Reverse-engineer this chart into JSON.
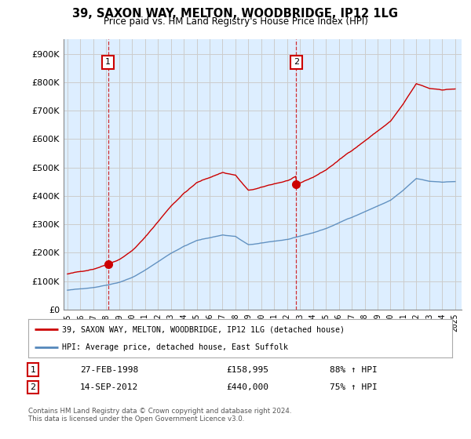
{
  "title": "39, SAXON WAY, MELTON, WOODBRIDGE, IP12 1LG",
  "subtitle": "Price paid vs. HM Land Registry's House Price Index (HPI)",
  "sale1_date": "27-FEB-1998",
  "sale1_price": 158995,
  "sale1_pct": "88% ↑ HPI",
  "sale2_date": "14-SEP-2012",
  "sale2_price": 440000,
  "sale2_pct": "75% ↑ HPI",
  "legend_line1": "39, SAXON WAY, MELTON, WOODBRIDGE, IP12 1LG (detached house)",
  "legend_line2": "HPI: Average price, detached house, East Suffolk",
  "footnote": "Contains HM Land Registry data © Crown copyright and database right 2024.\nThis data is licensed under the Open Government Licence v3.0.",
  "ylim": [
    0,
    950000
  ],
  "yticks": [
    0,
    100000,
    200000,
    300000,
    400000,
    500000,
    600000,
    700000,
    800000,
    900000
  ],
  "ytick_labels": [
    "£0",
    "£100K",
    "£200K",
    "£300K",
    "£400K",
    "£500K",
    "£600K",
    "£700K",
    "£800K",
    "£900K"
  ],
  "sale1_x": 1998.15,
  "sale2_x": 2012.71,
  "red_color": "#cc0000",
  "blue_color": "#5588bb",
  "bg_shade_color": "#ddeeff",
  "vline_color": "#cc0000",
  "background_color": "#ffffff",
  "grid_color": "#cccccc",
  "xlim_left": 1994.7,
  "xlim_right": 2025.5
}
